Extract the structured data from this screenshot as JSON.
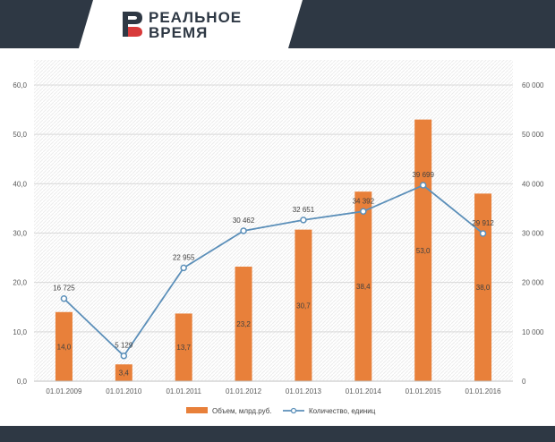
{
  "brand": {
    "line1": "РЕАЛЬНОЕ",
    "line2": "ВРЕМЯ",
    "header_color": "#2e3844"
  },
  "chart_data": {
    "type": "bar",
    "categories": [
      "01.01.2009",
      "01.01.2010",
      "01.01.2011",
      "01.01.2012",
      "01.01.2013",
      "01.01.2014",
      "01.01.2015",
      "01.01.2016"
    ],
    "series": [
      {
        "name": "Объем, млрд.руб.",
        "kind": "bar",
        "axis": "left",
        "color": "#e8803a",
        "values": [
          14.0,
          3.4,
          13.7,
          23.2,
          30.7,
          38.4,
          53.0,
          38.0
        ],
        "labels": [
          "14,0",
          "3,4",
          "13,7",
          "23,2",
          "30,7",
          "38,4",
          "53,0",
          "38,0"
        ]
      },
      {
        "name": "Количество, единиц",
        "kind": "line",
        "axis": "right",
        "color": "#5b8fb9",
        "values": [
          16725,
          5129,
          22955,
          30462,
          32651,
          34392,
          39699,
          29912
        ],
        "labels": [
          "16 725",
          "5 129",
          "22 955",
          "30 462",
          "32 651",
          "34 392",
          "39 699",
          "29 912"
        ]
      }
    ],
    "left_axis": {
      "ylim": [
        0,
        60
      ],
      "ticks": [
        "0,0",
        "10,0",
        "20,0",
        "30,0",
        "40,0",
        "50,0",
        "60,0"
      ]
    },
    "right_axis": {
      "ylim": [
        0,
        60000
      ],
      "ticks": [
        "0",
        "10 000",
        "20 000",
        "30 000",
        "40 000",
        "50 000",
        "60 000"
      ]
    },
    "legend_position": "bottom",
    "grid": true
  }
}
